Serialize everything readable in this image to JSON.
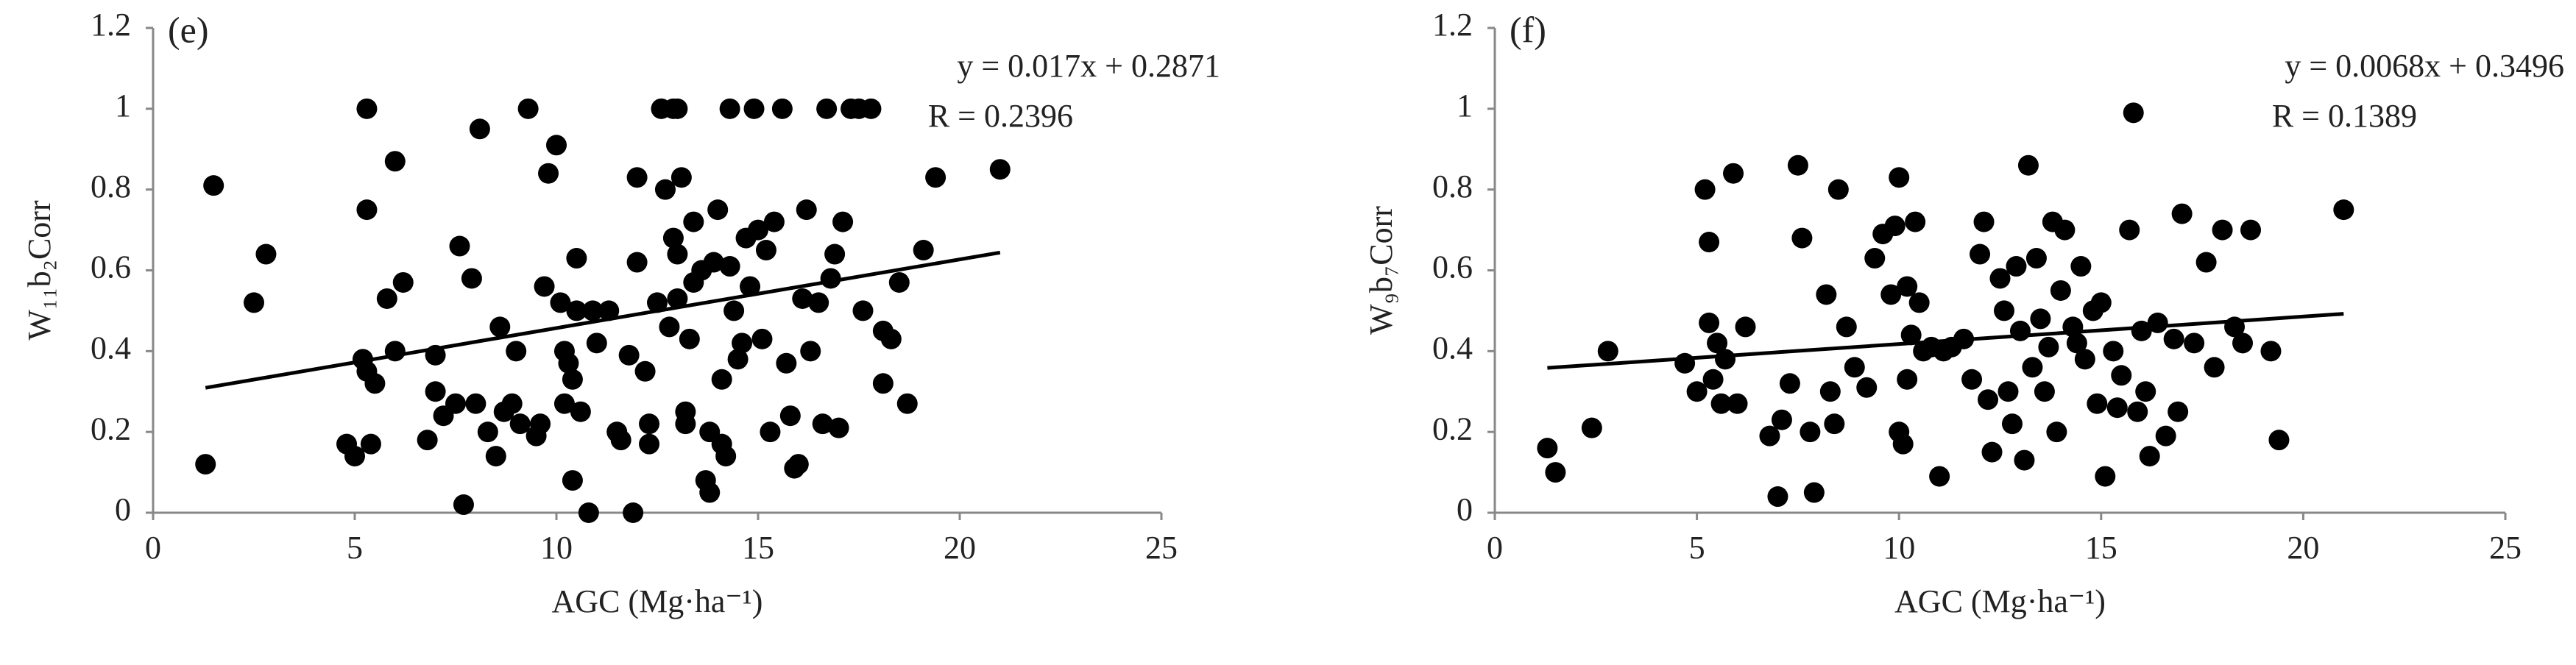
{
  "chart_data": [
    {
      "type": "scatter",
      "title": "(e)",
      "x_label": "AGC (Mg·ha⁻¹)",
      "y_label": "W₁₁b₂Corr",
      "annotations": [
        "y = 0.017x + 0.2871",
        "R = 0.2396"
      ],
      "xlim": [
        0,
        25
      ],
      "ylim": [
        0,
        1.2
      ],
      "xticks": [
        0,
        5,
        10,
        15,
        20,
        25
      ],
      "yticks": [
        0,
        0.2,
        0.4,
        0.6,
        0.8,
        1,
        1.2
      ],
      "color": "#000000",
      "trendline": {
        "x": [
          1.3,
          21.0
        ],
        "y": [
          0.3092,
          0.6441
        ]
      },
      "x": [
        1.3,
        1.5,
        2.5,
        2.8,
        4.8,
        5.0,
        5.3,
        5.3,
        5.2,
        5.3,
        5.5,
        5.4,
        5.8,
        6.0,
        6.0,
        6.2,
        6.8,
        7.0,
        7.0,
        7.2,
        7.5,
        7.6,
        7.7,
        7.9,
        8.0,
        8.1,
        8.3,
        8.5,
        8.6,
        8.7,
        8.9,
        9.0,
        9.1,
        9.3,
        9.5,
        9.6,
        9.7,
        9.8,
        10.0,
        10.1,
        10.2,
        10.2,
        10.3,
        10.4,
        10.4,
        10.5,
        10.5,
        10.6,
        10.8,
        10.9,
        11.0,
        11.3,
        11.5,
        11.6,
        11.8,
        11.9,
        12.0,
        12.0,
        12.2,
        12.3,
        12.3,
        12.5,
        12.6,
        12.7,
        12.8,
        12.9,
        12.9,
        13.0,
        13.0,
        13.0,
        13.1,
        13.2,
        13.2,
        13.3,
        13.4,
        13.4,
        13.6,
        13.7,
        13.8,
        13.8,
        13.9,
        14.0,
        14.1,
        14.1,
        14.2,
        14.3,
        14.3,
        14.4,
        14.5,
        14.6,
        14.7,
        14.8,
        14.9,
        15.0,
        15.1,
        15.2,
        15.3,
        15.4,
        15.6,
        15.7,
        15.8,
        15.9,
        16.0,
        16.1,
        16.2,
        16.3,
        16.5,
        16.6,
        16.7,
        16.8,
        16.9,
        17.0,
        17.1,
        17.3,
        17.5,
        17.6,
        17.8,
        18.1,
        18.1,
        18.3,
        18.5,
        18.7,
        19.1,
        19.4,
        21.0
      ],
      "y": [
        0.12,
        0.81,
        0.52,
        0.64,
        0.17,
        0.14,
        1.0,
        0.75,
        0.38,
        0.35,
        0.32,
        0.17,
        0.53,
        0.87,
        0.4,
        0.57,
        0.18,
        0.39,
        0.3,
        0.24,
        0.27,
        0.66,
        0.02,
        0.58,
        0.27,
        0.95,
        0.2,
        0.14,
        0.46,
        0.25,
        0.27,
        0.4,
        0.22,
        1.0,
        0.19,
        0.22,
        0.56,
        0.84,
        0.91,
        0.52,
        0.4,
        0.27,
        0.37,
        0.33,
        0.08,
        0.5,
        0.63,
        0.25,
        0.0,
        0.5,
        0.42,
        0.5,
        0.2,
        0.18,
        0.39,
        0.0,
        0.62,
        0.83,
        0.35,
        0.17,
        0.22,
        0.52,
        1.0,
        0.8,
        0.46,
        0.68,
        1.0,
        1.0,
        0.53,
        0.64,
        0.83,
        0.25,
        0.22,
        0.43,
        0.57,
        0.72,
        0.6,
        0.08,
        0.05,
        0.2,
        0.62,
        0.75,
        0.33,
        0.17,
        0.14,
        1.0,
        0.61,
        0.5,
        0.38,
        0.42,
        0.68,
        0.56,
        1.0,
        0.7,
        0.43,
        0.65,
        0.2,
        0.72,
        1.0,
        0.37,
        0.24,
        0.11,
        0.12,
        0.53,
        0.75,
        0.4,
        0.52,
        0.22,
        1.0,
        0.58,
        0.64,
        0.21,
        0.72,
        1.0,
        1.0,
        0.5,
        1.0,
        0.45,
        0.32,
        0.43,
        0.57,
        0.27,
        0.65,
        0.83,
        0.85
      ]
    },
    {
      "type": "scatter",
      "title": "(f)",
      "x_label": "AGC (Mg·ha⁻¹)",
      "y_label": "W₉b₇Corr",
      "annotations": [
        "y = 0.0068x + 0.3496",
        "R = 0.1389"
      ],
      "xlim": [
        0,
        25
      ],
      "ylim": [
        0,
        1.2
      ],
      "xticks": [
        0,
        5,
        10,
        15,
        20,
        25
      ],
      "yticks": [
        0,
        0.2,
        0.4,
        0.6,
        0.8,
        1,
        1.2
      ],
      "color": "#000000",
      "trendline": {
        "x": [
          1.3,
          21.0
        ],
        "y": [
          0.3584,
          0.4924
        ]
      },
      "x": [
        1.3,
        1.5,
        2.4,
        2.8,
        4.7,
        5.0,
        5.2,
        5.3,
        5.3,
        5.4,
        5.5,
        5.6,
        5.7,
        5.9,
        6.0,
        6.2,
        6.8,
        7.0,
        7.1,
        7.3,
        7.5,
        7.6,
        7.8,
        7.9,
        8.2,
        8.3,
        8.4,
        8.5,
        8.7,
        8.9,
        9.2,
        9.4,
        9.6,
        9.8,
        9.9,
        10.0,
        10.0,
        10.1,
        10.2,
        10.2,
        10.3,
        10.4,
        10.5,
        10.6,
        10.8,
        11.0,
        11.1,
        11.3,
        11.6,
        11.8,
        12.0,
        12.1,
        12.2,
        12.3,
        12.5,
        12.6,
        12.7,
        12.8,
        12.9,
        13.0,
        13.1,
        13.2,
        13.3,
        13.4,
        13.5,
        13.6,
        13.7,
        13.8,
        13.9,
        14.0,
        14.1,
        14.3,
        14.4,
        14.5,
        14.6,
        14.8,
        14.9,
        15.0,
        15.1,
        15.3,
        15.4,
        15.5,
        15.7,
        15.8,
        15.9,
        16.0,
        16.1,
        16.2,
        16.4,
        16.6,
        16.8,
        16.9,
        17.0,
        17.3,
        17.6,
        17.8,
        18.0,
        18.3,
        18.5,
        18.7,
        19.2,
        19.4,
        21.0
      ],
      "y": [
        0.16,
        0.1,
        0.21,
        0.4,
        0.37,
        0.3,
        0.8,
        0.67,
        0.47,
        0.33,
        0.42,
        0.27,
        0.38,
        0.84,
        0.27,
        0.46,
        0.19,
        0.04,
        0.23,
        0.32,
        0.86,
        0.68,
        0.2,
        0.05,
        0.54,
        0.3,
        0.22,
        0.8,
        0.46,
        0.36,
        0.31,
        0.63,
        0.69,
        0.54,
        0.71,
        0.83,
        0.2,
        0.17,
        0.33,
        0.56,
        0.44,
        0.72,
        0.52,
        0.4,
        0.41,
        0.09,
        0.4,
        0.41,
        0.43,
        0.33,
        0.64,
        0.72,
        0.28,
        0.15,
        0.58,
        0.5,
        0.3,
        0.22,
        0.61,
        0.45,
        0.13,
        0.86,
        0.36,
        0.63,
        0.48,
        0.3,
        0.41,
        0.72,
        0.2,
        0.55,
        0.7,
        0.46,
        0.42,
        0.61,
        0.38,
        0.5,
        0.27,
        0.52,
        0.09,
        0.4,
        0.26,
        0.34,
        0.7,
        0.99,
        0.25,
        0.45,
        0.3,
        0.14,
        0.47,
        0.19,
        0.43,
        0.25,
        0.74,
        0.42,
        0.62,
        0.36,
        0.7,
        0.46,
        0.42,
        0.7,
        0.4,
        0.18,
        0.75
      ]
    }
  ]
}
